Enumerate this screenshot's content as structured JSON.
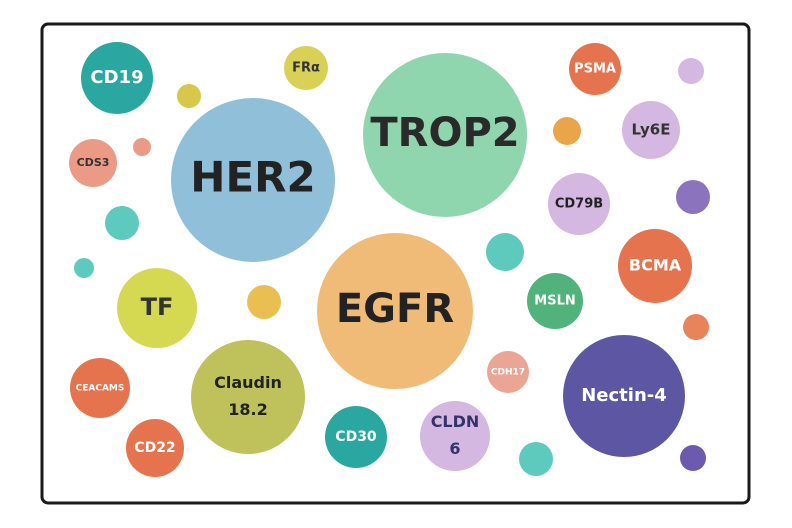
{
  "nodes": [
    {
      "lines": [
        "CD19"
      ]
    },
    {
      "lines": [
        "FRα"
      ]
    },
    {
      "lines": [
        "TROP2"
      ]
    },
    {
      "lines": [
        "PSMA"
      ]
    },
    {
      "lines": [
        "Ly6E"
      ]
    },
    {
      "lines": [
        "HER2"
      ]
    },
    {
      "lines": [
        "CDS3"
      ]
    },
    {
      "lines": [
        "CD79B"
      ]
    },
    {
      "lines": [
        "BCMA"
      ]
    },
    {
      "lines": [
        "TF"
      ]
    },
    {
      "lines": [
        "EGFR"
      ]
    },
    {
      "lines": [
        "MSLN"
      ]
    },
    {
      "lines": [
        "CEACAMS"
      ]
    },
    {
      "lines": [
        "Claudin",
        "18.2"
      ]
    },
    {
      "lines": [
        "CDH17"
      ]
    },
    {
      "lines": [
        "Nectin-4"
      ]
    },
    {
      "lines": [
        "CD22"
      ]
    },
    {
      "lines": [
        "CD30"
      ]
    },
    {
      "lines": [
        "CLDN",
        "6"
      ]
    }
  ]
}
